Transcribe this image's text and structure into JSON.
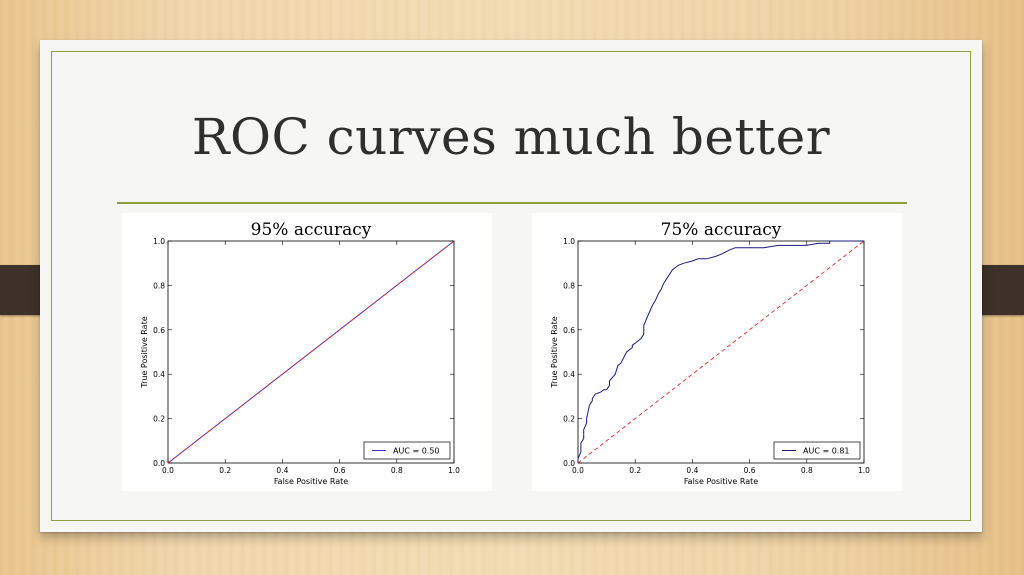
{
  "slide": {
    "title": "ROC curves much better"
  },
  "chart_data": [
    {
      "type": "line",
      "title": "95% accuracy",
      "xlabel": "False Positive Rate",
      "ylabel": "True Positive Rate",
      "xlim": [
        0.0,
        1.0
      ],
      "ylim": [
        0.0,
        1.0
      ],
      "xticks": [
        "0.0",
        "0.2",
        "0.4",
        "0.6",
        "0.8",
        "1.0"
      ],
      "yticks": [
        "0.0",
        "0.2",
        "0.4",
        "0.6",
        "0.8",
        "1.0"
      ],
      "legend": {
        "position": "lower-right",
        "entries": [
          "AUC = 0.50"
        ]
      },
      "series": [
        {
          "name": "AUC = 0.50",
          "color": "#3a2fd0",
          "style": "solid",
          "x": [
            0.0,
            1.0
          ],
          "y": [
            0.0,
            1.0
          ]
        },
        {
          "color": "#e0282c",
          "style": "dashed",
          "x": [
            0.0,
            1.0
          ],
          "y": [
            0.0,
            1.0
          ]
        }
      ]
    },
    {
      "type": "line",
      "title": "75% accuracy",
      "xlabel": "False Positive Rate",
      "ylabel": "True Positive Rate",
      "xlim": [
        0.0,
        1.0
      ],
      "ylim": [
        0.0,
        1.0
      ],
      "xticks": [
        "0.0",
        "0.2",
        "0.4",
        "0.6",
        "0.8",
        "1.0"
      ],
      "yticks": [
        "0.0",
        "0.2",
        "0.4",
        "0.6",
        "0.8",
        "1.0"
      ],
      "legend": {
        "position": "lower-right",
        "entries": [
          "AUC = 0.81"
        ]
      },
      "series": [
        {
          "name": "AUC = 0.81",
          "color": "#1a1a7a",
          "style": "solid",
          "x": [
            0.0,
            0.0,
            0.01,
            0.01,
            0.02,
            0.02,
            0.03,
            0.03,
            0.04,
            0.05,
            0.05,
            0.06,
            0.08,
            0.09,
            0.1,
            0.11,
            0.11,
            0.13,
            0.14,
            0.15,
            0.17,
            0.19,
            0.19,
            0.21,
            0.22,
            0.23,
            0.23,
            0.24,
            0.25,
            0.26,
            0.27,
            0.28,
            0.29,
            0.3,
            0.31,
            0.32,
            0.33,
            0.35,
            0.37,
            0.4,
            0.42,
            0.45,
            0.48,
            0.5,
            0.53,
            0.55,
            0.6,
            0.65,
            0.7,
            0.75,
            0.8,
            0.84,
            0.86,
            0.88,
            0.88,
            1.0
          ],
          "y": [
            0.0,
            0.02,
            0.05,
            0.09,
            0.11,
            0.15,
            0.18,
            0.2,
            0.26,
            0.28,
            0.29,
            0.31,
            0.32,
            0.33,
            0.33,
            0.35,
            0.37,
            0.4,
            0.44,
            0.45,
            0.5,
            0.52,
            0.53,
            0.55,
            0.56,
            0.58,
            0.62,
            0.65,
            0.68,
            0.71,
            0.73,
            0.76,
            0.78,
            0.81,
            0.83,
            0.85,
            0.87,
            0.89,
            0.9,
            0.91,
            0.92,
            0.92,
            0.93,
            0.94,
            0.96,
            0.97,
            0.97,
            0.97,
            0.98,
            0.98,
            0.98,
            0.99,
            0.99,
            0.99,
            1.0,
            1.0
          ]
        },
        {
          "color": "#e0282c",
          "style": "dashed",
          "x": [
            0.0,
            1.0
          ],
          "y": [
            0.0,
            1.0
          ]
        }
      ]
    }
  ]
}
